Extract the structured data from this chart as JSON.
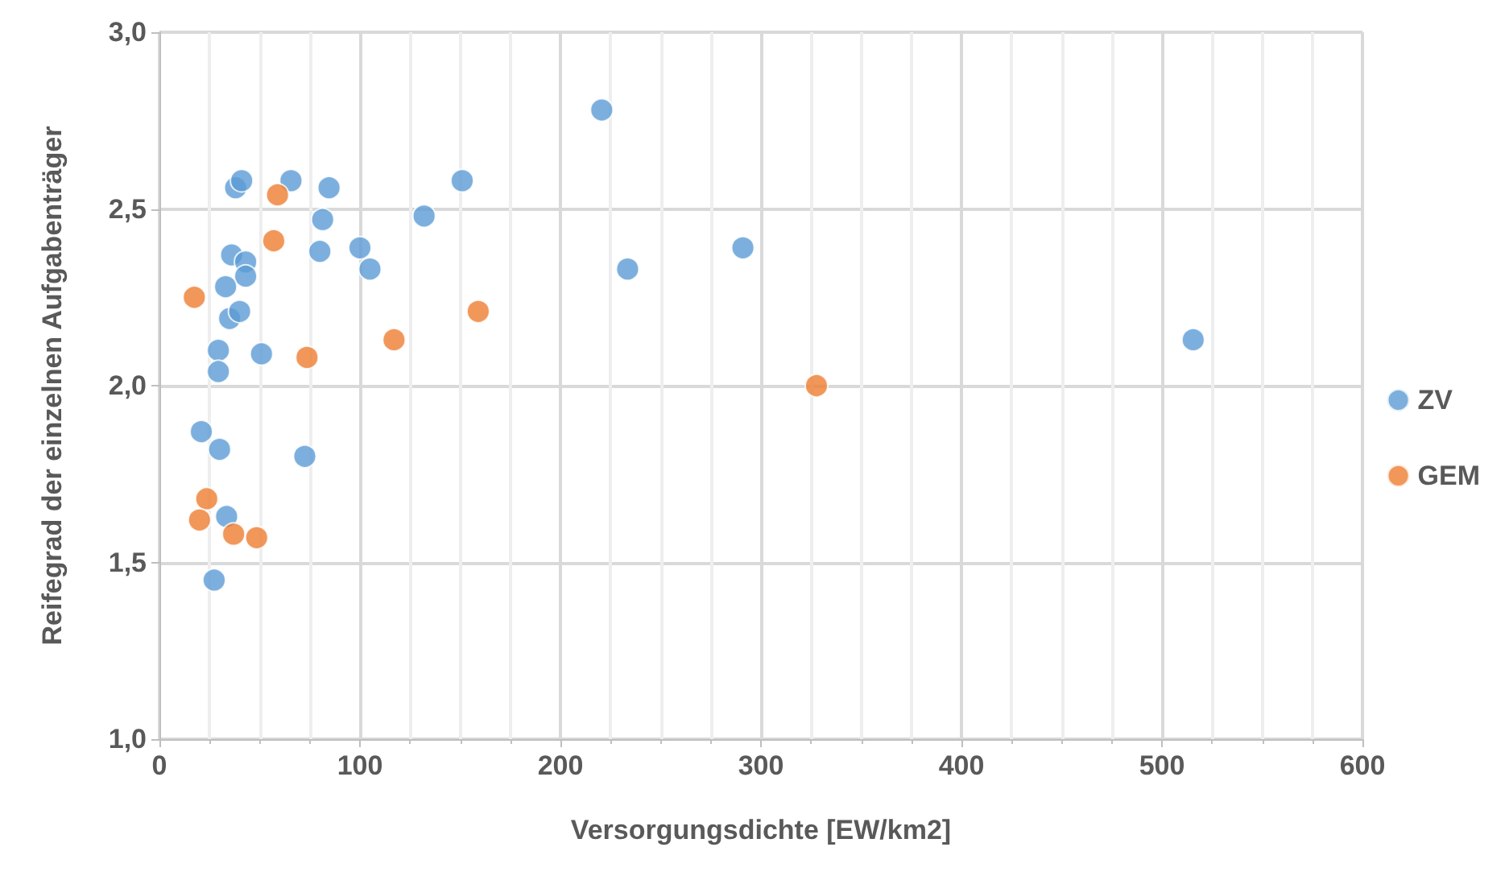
{
  "chart_data": {
    "type": "scatter",
    "xlabel": "Versorgungsdichte [EW/km2]",
    "ylabel": "Reifegrad der einzelnen Aufgabenträger",
    "series": [
      {
        "name": "ZV",
        "color": "#5b9bd5",
        "x": [
          38,
          41,
          65.6,
          84.6,
          151,
          132,
          81.4,
          80,
          100,
          105,
          36,
          43,
          43,
          33,
          35,
          40,
          29.4,
          50.9,
          29.4,
          20.9,
          30,
          72.5,
          33.5,
          27.3,
          220.6,
          233.5,
          291,
          515.6
        ],
        "values": [
          2.56,
          2.58,
          2.58,
          2.56,
          2.58,
          2.48,
          2.47,
          2.38,
          2.39,
          2.33,
          2.37,
          2.35,
          2.31,
          2.28,
          2.19,
          2.21,
          2.1,
          2.09,
          2.04,
          1.87,
          1.82,
          1.8,
          1.63,
          1.45,
          2.78,
          2.33,
          2.39,
          2.13
        ]
      },
      {
        "name": "GEM",
        "color": "#ed7d31",
        "x": [
          58.9,
          57,
          17.4,
          73.6,
          117,
          159,
          23.6,
          20,
          37,
          48.5,
          327.7
        ],
        "values": [
          2.54,
          2.41,
          2.25,
          2.08,
          2.13,
          2.21,
          1.68,
          1.62,
          1.58,
          1.57,
          2.0
        ]
      }
    ],
    "xlim": [
      0,
      600
    ],
    "xticks": [
      0,
      100,
      200,
      300,
      400,
      500,
      600
    ],
    "ylim": [
      1,
      3
    ],
    "yticks": [
      {
        "value": 1,
        "label": "1,0"
      },
      {
        "value": 1.5,
        "label": "1,5"
      },
      {
        "value": 2,
        "label": "2,0"
      },
      {
        "value": 2.5,
        "label": "2,5"
      },
      {
        "value": 3,
        "label": "3,0"
      }
    ],
    "grid": true,
    "legend": "right",
    "marker": "circle"
  }
}
